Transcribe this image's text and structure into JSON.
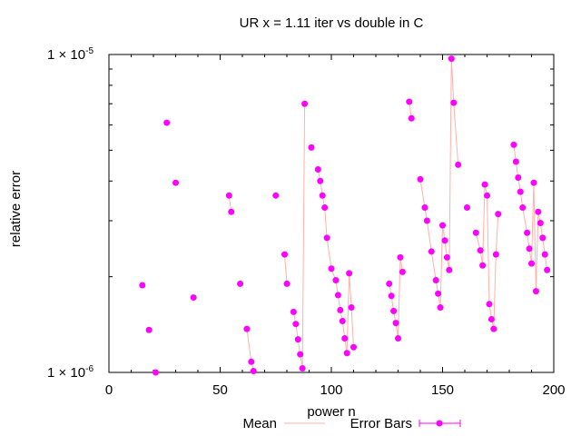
{
  "chart_data": {
    "type": "line",
    "title": "UR x = 1.11 iter vs double in C",
    "xlabel": "power n",
    "ylabel": "relative error",
    "xlim": [
      0,
      200
    ],
    "ylim": [
      1e-06,
      1e-05
    ],
    "yscale": "log",
    "grid": false,
    "legend_placement": "bottom-center",
    "x_ticks": [
      {
        "value": 0,
        "label": "0"
      },
      {
        "value": 50,
        "label": "50"
      },
      {
        "value": 100,
        "label": "100"
      },
      {
        "value": 150,
        "label": "150"
      },
      {
        "value": 200,
        "label": "200"
      }
    ],
    "y_ticks": [
      {
        "value": 1e-06,
        "mantissa": "1 × 10",
        "exponent": "-6"
      },
      {
        "value": 1e-05,
        "mantissa": "1 × 10",
        "exponent": "-5"
      }
    ],
    "series": [
      {
        "name": "Mean",
        "color": "#ffb0a8",
        "x": [
          15,
          18,
          21,
          26,
          30,
          38,
          54,
          55,
          59,
          62,
          64,
          65,
          75,
          79,
          80,
          83,
          84,
          85,
          86,
          87,
          88,
          91,
          94,
          95,
          96,
          97,
          98,
          100,
          102,
          103,
          104,
          105,
          106,
          107,
          108,
          109,
          110,
          126,
          127,
          128,
          129,
          130,
          131,
          132,
          135,
          136,
          140,
          142,
          143,
          145,
          147,
          148,
          149,
          150,
          151,
          152,
          153,
          154,
          155,
          157,
          161,
          165,
          167,
          168,
          169,
          170,
          171,
          172,
          173,
          174,
          175,
          182,
          183,
          184,
          185,
          186,
          188,
          189,
          190,
          191,
          192,
          193,
          194,
          195,
          196,
          197
        ],
        "y": [
          1.88e-06,
          1.36e-06,
          1e-06,
          6.1e-06,
          3.95e-06,
          1.72e-06,
          3.6e-06,
          3.2e-06,
          1.9e-06,
          1.37e-06,
          1.08e-06,
          1.01e-06,
          3.6e-06,
          2.35e-06,
          1.9e-06,
          1.55e-06,
          1.42e-06,
          1.27e-06,
          1.14e-06,
          1.03e-06,
          7e-06,
          5.1e-06,
          4.35e-06,
          4e-06,
          3.6e-06,
          3.3e-06,
          2.65e-06,
          2.12e-06,
          1.95e-06,
          1.75e-06,
          1.57e-06,
          1.45e-06,
          1.28e-06,
          1.15e-06,
          2.05e-06,
          1.6e-06,
          1.2e-06,
          1.9e-06,
          1.74e-06,
          1.56e-06,
          1.43e-06,
          1.28e-06,
          2.3e-06,
          2.07e-06,
          7.1e-06,
          6.3e-06,
          4.05e-06,
          3.3e-06,
          3e-06,
          2.4e-06,
          1.95e-06,
          1.77e-06,
          1.6e-06,
          2.9e-06,
          2.6e-06,
          2.3e-06,
          2.1e-06,
          9.7e-06,
          7.05e-06,
          4.5e-06,
          3.3e-06,
          2.75e-06,
          2.42e-06,
          2.17e-06,
          3.9e-06,
          3.6e-06,
          1.64e-06,
          1.47e-06,
          1.37e-06,
          2.35e-06,
          3.15e-06,
          5.2e-06,
          4.6e-06,
          4.1e-06,
          3.7e-06,
          3.3e-06,
          2.75e-06,
          2.45e-06,
          2.2e-06,
          3.95e-06,
          1.8e-06,
          3.2e-06,
          2.95e-06,
          2.65e-06,
          2.35e-06,
          2.1e-06
        ]
      },
      {
        "name": "Error Bars",
        "color": "#ff00ff",
        "x": [
          15,
          18,
          21,
          26,
          30,
          38,
          54,
          55,
          59,
          62,
          64,
          65,
          75,
          79,
          80,
          83,
          84,
          85,
          86,
          87,
          88,
          91,
          94,
          95,
          96,
          97,
          98,
          100,
          102,
          103,
          104,
          105,
          106,
          107,
          108,
          109,
          110,
          126,
          127,
          128,
          129,
          130,
          131,
          132,
          135,
          136,
          140,
          142,
          143,
          145,
          147,
          148,
          149,
          150,
          151,
          152,
          153,
          154,
          155,
          157,
          161,
          165,
          167,
          168,
          169,
          170,
          171,
          172,
          173,
          174,
          175,
          182,
          183,
          184,
          185,
          186,
          188,
          189,
          190,
          191,
          192,
          193,
          194,
          195,
          196,
          197
        ],
        "y": [
          1.88e-06,
          1.36e-06,
          1e-06,
          6.1e-06,
          3.95e-06,
          1.72e-06,
          3.6e-06,
          3.2e-06,
          1.9e-06,
          1.37e-06,
          1.08e-06,
          1.01e-06,
          3.6e-06,
          2.35e-06,
          1.9e-06,
          1.55e-06,
          1.42e-06,
          1.27e-06,
          1.14e-06,
          1.03e-06,
          7e-06,
          5.1e-06,
          4.35e-06,
          4e-06,
          3.6e-06,
          3.3e-06,
          2.65e-06,
          2.12e-06,
          1.95e-06,
          1.75e-06,
          1.57e-06,
          1.45e-06,
          1.28e-06,
          1.15e-06,
          2.05e-06,
          1.6e-06,
          1.2e-06,
          1.9e-06,
          1.74e-06,
          1.56e-06,
          1.43e-06,
          1.28e-06,
          2.3e-06,
          2.07e-06,
          7.1e-06,
          6.3e-06,
          4.05e-06,
          3.3e-06,
          3e-06,
          2.4e-06,
          1.95e-06,
          1.77e-06,
          1.6e-06,
          2.9e-06,
          2.6e-06,
          2.3e-06,
          2.1e-06,
          9.7e-06,
          7.05e-06,
          4.5e-06,
          3.3e-06,
          2.75e-06,
          2.42e-06,
          2.17e-06,
          3.9e-06,
          3.6e-06,
          1.64e-06,
          1.47e-06,
          1.37e-06,
          2.35e-06,
          3.15e-06,
          5.2e-06,
          4.6e-06,
          4.1e-06,
          3.7e-06,
          3.3e-06,
          2.75e-06,
          2.45e-06,
          2.2e-06,
          3.95e-06,
          1.8e-06,
          3.2e-06,
          2.95e-06,
          2.65e-06,
          2.35e-06,
          2.1e-06
        ]
      }
    ]
  }
}
